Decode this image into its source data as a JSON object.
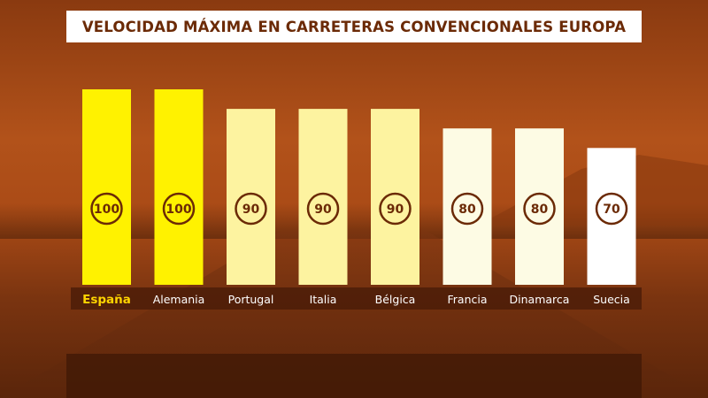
{
  "chart_data": {
    "type": "bar",
    "title": "VELOCIDAD MÁXIMA EN CARRETERAS CONVENCIONALES EUROPA",
    "categories": [
      "España",
      "Alemania",
      "Portugal",
      "Italia",
      "Bélgica",
      "Francia",
      "Dinamarca",
      "Suecia"
    ],
    "values": [
      100,
      100,
      90,
      90,
      90,
      80,
      80,
      70
    ],
    "value_labels": [
      "100",
      "100",
      "90",
      "90",
      "90",
      "80",
      "80",
      "70"
    ],
    "ylim": [
      0,
      100
    ],
    "grid": false,
    "highlight_category": "España"
  },
  "colors": {
    "value_100": "#fff200",
    "value_90": "#fdf3a0",
    "value_80": "#fdfbe4",
    "value_70": "#ffffff",
    "badge_stroke": "#6b2a06",
    "label_band": "#4a1c07",
    "highlight_label": "#ffd400",
    "label_text": "#ffffff",
    "title_text": "#6b2a06"
  }
}
